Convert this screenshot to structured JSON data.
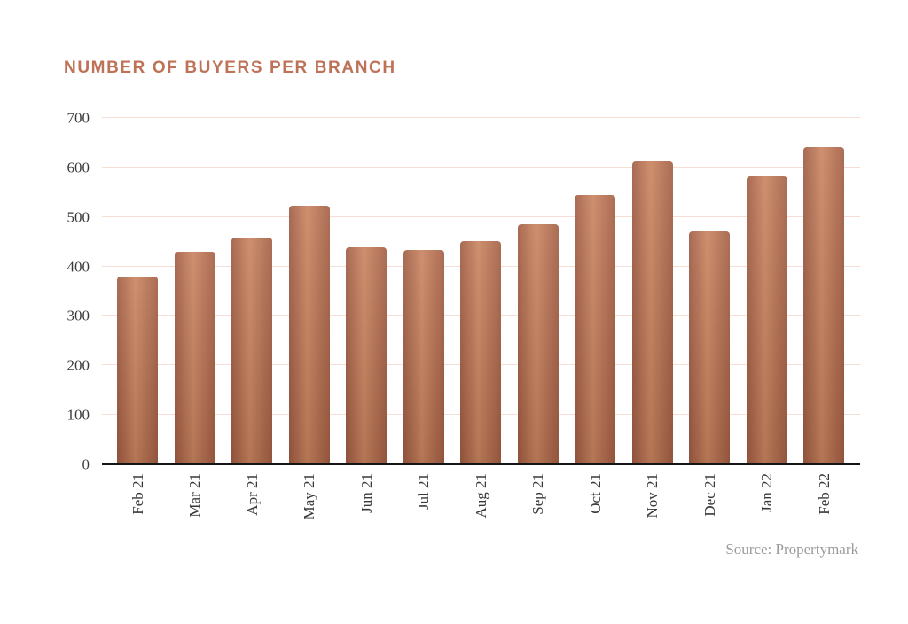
{
  "title": "NUMBER OF BUYERS PER BRANCH",
  "source": "Source: Propertymark",
  "colors": {
    "title": "#be7358",
    "bar_light": "#c9835f",
    "bar_dark": "#a25d42",
    "bar_edge": "#9f5a40",
    "gridline": "#f6ded4",
    "axis": "#151515",
    "tick_label": "#3a3a3a",
    "source_text": "#9a9a9a"
  },
  "chart_data": {
    "type": "bar",
    "title": "NUMBER OF BUYERS PER BRANCH",
    "categories": [
      "Feb 21",
      "Mar 21",
      "Apr 21",
      "May 21",
      "Jun 21",
      "Jul 21",
      "Aug 21",
      "Sep 21",
      "Oct 21",
      "Nov 21",
      "Dec 21",
      "Jan 22",
      "Feb 22"
    ],
    "values": [
      380,
      430,
      458,
      522,
      439,
      434,
      452,
      485,
      545,
      612,
      471,
      581,
      641
    ],
    "xlabel": "",
    "ylabel": "",
    "ylim": [
      0,
      700
    ],
    "yticks": [
      0,
      100,
      200,
      300,
      400,
      500,
      600,
      700
    ],
    "grid": true,
    "legend_position": "none",
    "x_tick_rotation": 90,
    "source": "Source: Propertymark"
  }
}
